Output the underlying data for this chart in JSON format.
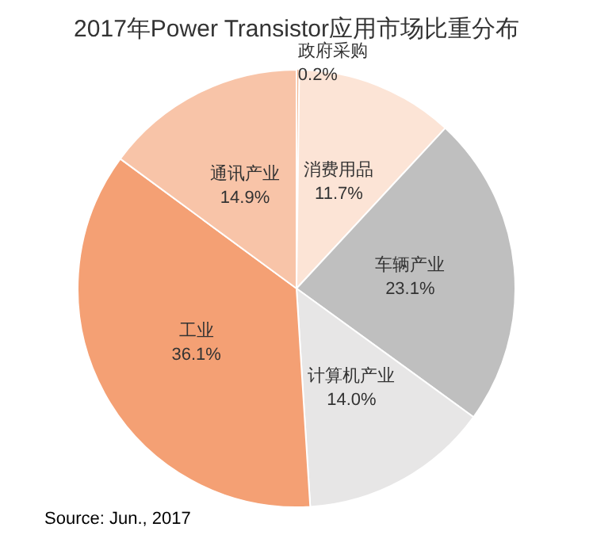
{
  "chart_data": {
    "type": "pie",
    "title": "2017年Power Transistor应用市场比重分布",
    "categories": [
      "政府采购",
      "消费用品",
      "车辆产业",
      "计算机产业",
      "工业",
      "通讯产业"
    ],
    "values": [
      0.2,
      11.7,
      23.1,
      14.0,
      36.1,
      14.9
    ],
    "colors": [
      "#f2b58f",
      "#fce4d6",
      "#bfbfbf",
      "#e7e6e6",
      "#f4a074",
      "#f8c4a8"
    ],
    "value_labels": [
      "0.2%",
      "11.7%",
      "23.1%",
      "14.0%",
      "36.1%",
      "14.9%"
    ],
    "annotations": [
      "Source: Jun., 2017"
    ],
    "legend": false
  }
}
